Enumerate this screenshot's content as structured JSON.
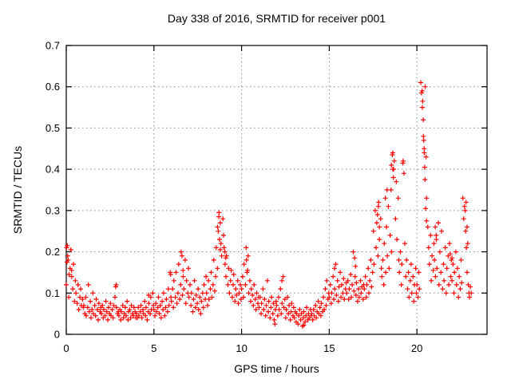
{
  "figure": {
    "title": "Day 338 of 2016, SRMTID for receiver p001",
    "background": "#ffffff"
  },
  "chart_data": {
    "type": "scatter",
    "title": "Day 338 of 2016, SRMTID for receiver p001",
    "xlabel": "GPS time / hours",
    "ylabel": "SRMTID / TECUs",
    "xlim": [
      0,
      24
    ],
    "ylim": [
      0,
      0.7
    ],
    "grid": true,
    "legend": false,
    "marker": {
      "shape": "plus",
      "color": "#ff0000",
      "size": 7
    },
    "grid_color": "#8a8a8a",
    "axis_color": "#000000",
    "xticks": [
      {
        "v": 0,
        "label": "0"
      },
      {
        "v": 5,
        "label": "5"
      },
      {
        "v": 10,
        "label": "10"
      },
      {
        "v": 15,
        "label": "15"
      },
      {
        "v": 20,
        "label": "20"
      }
    ],
    "yticks": [
      {
        "v": 0.0,
        "label": "0"
      },
      {
        "v": 0.1,
        "label": "0.1"
      },
      {
        "v": 0.2,
        "label": "0.2"
      },
      {
        "v": 0.3,
        "label": "0.3"
      },
      {
        "v": 0.4,
        "label": "0.4"
      },
      {
        "v": 0.5,
        "label": "0.5"
      },
      {
        "v": 0.6,
        "label": "0.6"
      },
      {
        "v": 0.7,
        "label": "0.7"
      }
    ],
    "series_name": "SRMTID",
    "points_hour_offsets": [
      0.0,
      0.06,
      0.11,
      0.14,
      0.22,
      0.26,
      0.31,
      0.37,
      0.41,
      0.47,
      0.52,
      0.55,
      0.62,
      0.67,
      0.71,
      0.78,
      0.82,
      0.86,
      0.93,
      0.97
    ],
    "points_by_hour": {
      "0": [
        0.12,
        0.215,
        0.18,
        0.09,
        0.16,
        0.205,
        0.14,
        0.11,
        0.17,
        0.08,
        0.13,
        0.1,
        0.075,
        0.12,
        0.06,
        0.09,
        0.11,
        0.07,
        0.085,
        0.065
      ],
      "1": [
        0.07,
        0.05,
        0.09,
        0.045,
        0.065,
        0.12,
        0.055,
        0.08,
        0.04,
        0.06,
        0.1,
        0.05,
        0.07,
        0.045,
        0.085,
        0.06,
        0.035,
        0.075,
        0.055,
        0.065
      ],
      "2": [
        0.05,
        0.07,
        0.04,
        0.06,
        0.045,
        0.08,
        0.055,
        0.035,
        0.065,
        0.05,
        0.075,
        0.045,
        0.06,
        0.04,
        0.07,
        0.09,
        0.115,
        0.065,
        0.05,
        0.055
      ],
      "3": [
        0.045,
        0.06,
        0.035,
        0.055,
        0.07,
        0.04,
        0.05,
        0.065,
        0.045,
        0.08,
        0.035,
        0.055,
        0.06,
        0.04,
        0.07,
        0.05,
        0.045,
        0.065,
        0.055,
        0.04
      ],
      "4": [
        0.05,
        0.04,
        0.065,
        0.045,
        0.055,
        0.07,
        0.04,
        0.06,
        0.05,
        0.08,
        0.045,
        0.065,
        0.035,
        0.055,
        0.075,
        0.05,
        0.09,
        0.06,
        0.1,
        0.07
      ],
      "5": [
        0.06,
        0.045,
        0.075,
        0.055,
        0.065,
        0.09,
        0.05,
        0.07,
        0.04,
        0.08,
        0.06,
        0.1,
        0.045,
        0.065,
        0.085,
        0.055,
        0.11,
        0.07,
        0.15,
        0.09
      ],
      "6": [
        0.08,
        0.11,
        0.065,
        0.13,
        0.09,
        0.15,
        0.075,
        0.1,
        0.17,
        0.085,
        0.12,
        0.2,
        0.095,
        0.14,
        0.11,
        0.18,
        0.075,
        0.13,
        0.1,
        0.16
      ],
      "7": [
        0.09,
        0.12,
        0.07,
        0.1,
        0.055,
        0.085,
        0.13,
        0.065,
        0.095,
        0.075,
        0.11,
        0.06,
        0.09,
        0.05,
        0.08,
        0.1,
        0.065,
        0.12,
        0.085,
        0.14
      ],
      "8": [
        0.1,
        0.07,
        0.13,
        0.085,
        0.11,
        0.15,
        0.09,
        0.12,
        0.18,
        0.105,
        0.14,
        0.21,
        0.16,
        0.25,
        0.295,
        0.27,
        0.22,
        0.19,
        0.28,
        0.24
      ],
      "9": [
        0.21,
        0.17,
        0.14,
        0.19,
        0.12,
        0.16,
        0.1,
        0.13,
        0.155,
        0.09,
        0.12,
        0.145,
        0.08,
        0.11,
        0.095,
        0.13,
        0.075,
        0.1,
        0.12,
        0.085
      ],
      "10": [
        0.11,
        0.14,
        0.09,
        0.17,
        0.12,
        0.21,
        0.15,
        0.19,
        0.1,
        0.13,
        0.08,
        0.11,
        0.095,
        0.07,
        0.12,
        0.085,
        0.06,
        0.1,
        0.075,
        0.09
      ],
      "11": [
        0.065,
        0.09,
        0.05,
        0.075,
        0.11,
        0.06,
        0.085,
        0.045,
        0.07,
        0.13,
        0.055,
        0.08,
        0.04,
        0.065,
        0.09,
        0.05,
        0.075,
        0.035,
        0.06,
        0.08
      ],
      "12": [
        0.07,
        0.045,
        0.09,
        0.06,
        0.11,
        0.05,
        0.075,
        0.14,
        0.065,
        0.085,
        0.04,
        0.06,
        0.09,
        0.05,
        0.07,
        0.035,
        0.055,
        0.075,
        0.045,
        0.065
      ],
      "13": [
        0.04,
        0.055,
        0.03,
        0.05,
        0.025,
        0.045,
        0.06,
        0.035,
        0.05,
        0.02,
        0.04,
        0.055,
        0.03,
        0.045,
        0.065,
        0.035,
        0.05,
        0.04,
        0.06,
        0.045
      ],
      "14": [
        0.05,
        0.035,
        0.06,
        0.045,
        0.07,
        0.04,
        0.055,
        0.08,
        0.05,
        0.065,
        0.045,
        0.075,
        0.055,
        0.09,
        0.06,
        0.11,
        0.07,
        0.13,
        0.085,
        0.1
      ],
      "15": [
        0.09,
        0.12,
        0.075,
        0.1,
        0.14,
        0.085,
        0.11,
        0.17,
        0.095,
        0.13,
        0.08,
        0.115,
        0.15,
        0.09,
        0.12,
        0.1,
        0.135,
        0.085,
        0.11,
        0.125
      ],
      "16": [
        0.1,
        0.13,
        0.085,
        0.11,
        0.145,
        0.09,
        0.12,
        0.2,
        0.105,
        0.14,
        0.095,
        0.125,
        0.08,
        0.11,
        0.09,
        0.13,
        0.1,
        0.115,
        0.085,
        0.12
      ],
      "17": [
        0.11,
        0.14,
        0.09,
        0.12,
        0.16,
        0.1,
        0.13,
        0.18,
        0.115,
        0.15,
        0.25,
        0.17,
        0.3,
        0.21,
        0.27,
        0.19,
        0.32,
        0.23,
        0.28,
        0.16
      ],
      "18": [
        0.14,
        0.18,
        0.12,
        0.22,
        0.15,
        0.26,
        0.19,
        0.31,
        0.16,
        0.24,
        0.35,
        0.2,
        0.44,
        0.4,
        0.42,
        0.28,
        0.37,
        0.23,
        0.33,
        0.18
      ],
      "19": [
        0.15,
        0.2,
        0.12,
        0.17,
        0.42,
        0.39,
        0.22,
        0.14,
        0.18,
        0.11,
        0.15,
        0.09,
        0.13,
        0.17,
        0.1,
        0.14,
        0.08,
        0.12,
        0.16,
        0.1
      ],
      "20": [
        0.12,
        0.09,
        0.15,
        0.11,
        0.61,
        0.585,
        0.55,
        0.48,
        0.45,
        0.6,
        0.43,
        0.33,
        0.26,
        0.21,
        0.17,
        0.24,
        0.13,
        0.19,
        0.155,
        0.22
      ],
      "21": [
        0.18,
        0.14,
        0.23,
        0.16,
        0.27,
        0.12,
        0.2,
        0.15,
        0.25,
        0.11,
        0.17,
        0.13,
        0.21,
        0.1,
        0.16,
        0.19,
        0.12,
        0.22,
        0.14,
        0.18
      ],
      "22": [
        0.13,
        0.17,
        0.1,
        0.15,
        0.2,
        0.12,
        0.16,
        0.09,
        0.14,
        0.11,
        0.18,
        0.125,
        0.33,
        0.28,
        0.31,
        0.25,
        0.21,
        0.15,
        0.12,
        0.1
      ]
    },
    "extra_points": [
      [
        0.02,
        0.21
      ],
      [
        0.04,
        0.175
      ],
      [
        0.08,
        0.19
      ],
      [
        0.16,
        0.145
      ],
      [
        0.3,
        0.155
      ],
      [
        2.85,
        0.12
      ],
      [
        4.7,
        0.095
      ],
      [
        5.95,
        0.145
      ],
      [
        6.6,
        0.19
      ],
      [
        6.66,
        0.155
      ],
      [
        8.63,
        0.26
      ],
      [
        8.7,
        0.285
      ],
      [
        8.74,
        0.23
      ],
      [
        8.78,
        0.205
      ],
      [
        9.05,
        0.2
      ],
      [
        9.1,
        0.185
      ],
      [
        10.28,
        0.18
      ],
      [
        10.34,
        0.155
      ],
      [
        11.9,
        0.025
      ],
      [
        12.3,
        0.13
      ],
      [
        13.55,
        0.022
      ],
      [
        15.3,
        0.16
      ],
      [
        16.45,
        0.185
      ],
      [
        16.5,
        0.165
      ],
      [
        17.75,
        0.29
      ],
      [
        17.8,
        0.31
      ],
      [
        17.86,
        0.26
      ],
      [
        18.2,
        0.33
      ],
      [
        18.3,
        0.35
      ],
      [
        18.55,
        0.41
      ],
      [
        18.6,
        0.435
      ],
      [
        18.63,
        0.4
      ],
      [
        18.66,
        0.38
      ],
      [
        19.2,
        0.415
      ],
      [
        19.26,
        0.39
      ],
      [
        20.3,
        0.59
      ],
      [
        20.33,
        0.565
      ],
      [
        20.36,
        0.52
      ],
      [
        20.39,
        0.47
      ],
      [
        20.42,
        0.44
      ],
      [
        20.44,
        0.405
      ],
      [
        20.46,
        0.375
      ],
      [
        20.5,
        0.305
      ],
      [
        20.55,
        0.275
      ],
      [
        21.05,
        0.26
      ],
      [
        21.1,
        0.24
      ],
      [
        21.9,
        0.195
      ],
      [
        22.0,
        0.185
      ],
      [
        22.75,
        0.3
      ],
      [
        22.8,
        0.32
      ],
      [
        22.86,
        0.26
      ],
      [
        22.9,
        0.22
      ],
      [
        23.0,
        0.09
      ],
      [
        23.05,
        0.115
      ],
      [
        23.1,
        0.1
      ]
    ]
  }
}
